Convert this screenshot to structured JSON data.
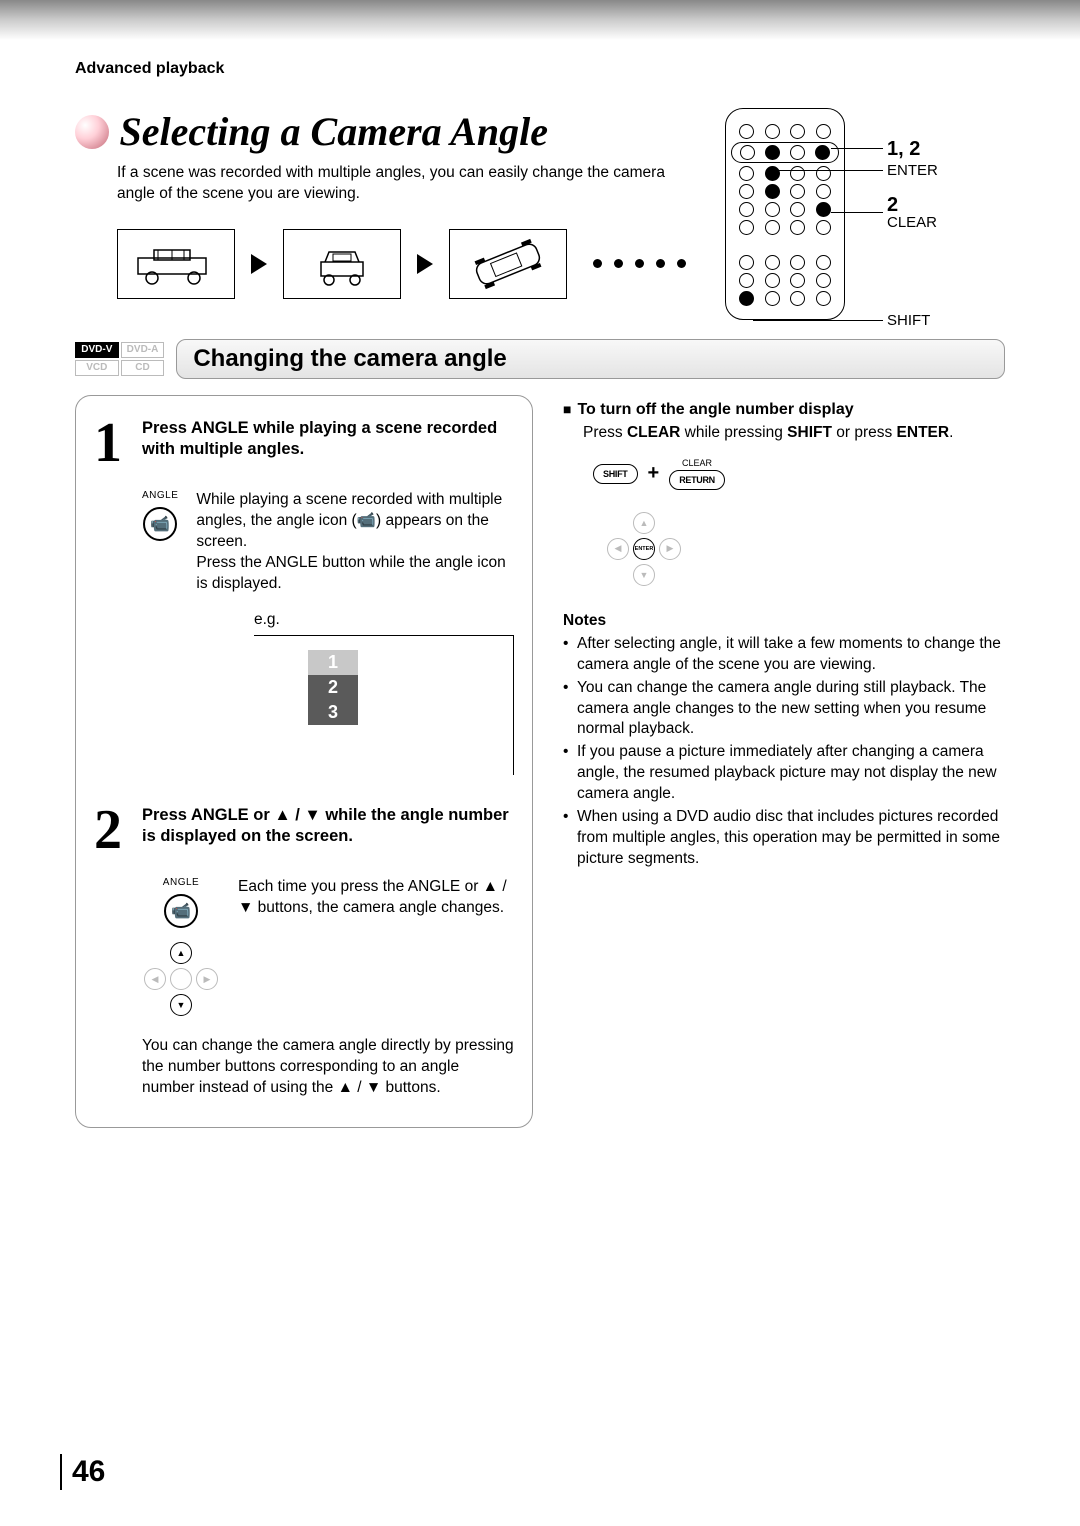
{
  "breadcrumb": "Advanced playback",
  "title": "Selecting a Camera Angle",
  "intro": "If a scene was recorded with multiple angles, you can easily change the camera angle of the scene you are viewing.",
  "remote_labels": {
    "steps12": "1, 2",
    "enter": "ENTER",
    "step2": "2",
    "clear": "CLEAR",
    "shift": "SHIFT"
  },
  "disc_badges": {
    "dvdv": "DVD-V",
    "dvda": "DVD-A",
    "vcd": "VCD",
    "cd": "CD"
  },
  "section_title": "Changing the camera angle",
  "step1": {
    "num": "1",
    "title": "Press ANGLE while playing a scene recorded with multiple angles.",
    "icon_label": "ANGLE",
    "desc": "While playing a scene recorded with multiple angles, the angle icon (📹) appears on the screen.\nPress the ANGLE button while the angle icon is displayed.",
    "eg_label": "e.g.",
    "eg_items": [
      "1",
      "2",
      "3"
    ],
    "eg_colors": [
      "#c8c8c8",
      "#5a5a5a",
      "#5a5a5a"
    ]
  },
  "step2": {
    "num": "2",
    "title": "Press ANGLE or ▲ / ▼ while the angle number is displayed on the screen.",
    "icon_label": "ANGLE",
    "desc": "Each time you press the ANGLE or ▲ / ▼ buttons, the camera angle changes.",
    "note": "You can change the camera angle directly by pressing the number buttons corresponding to an angle number instead of using the ▲ / ▼ buttons."
  },
  "turnoff": {
    "heading": "To turn off the angle number display",
    "text_pre": "Press ",
    "clear": "CLEAR",
    "text_mid": " while pressing ",
    "shift": "SHIFT",
    "text_mid2": " or press ",
    "enter": "ENTER",
    "text_end": ".",
    "btn_clear_label": "CLEAR",
    "btn_shift": "SHIFT",
    "btn_return": "RETURN",
    "plus": "+",
    "dpad_center": "ENTER"
  },
  "notes": {
    "heading": "Notes",
    "items": [
      "After selecting angle, it will take a few moments to change the camera angle of the scene you are viewing.",
      "You can change the camera angle during still playback. The camera angle changes to the new setting when you resume normal playback.",
      "If you pause a picture immediately after changing a camera angle, the resumed playback picture may not display the new camera angle.",
      "When using a DVD audio disc that includes pictures recorded from multiple angles, this operation may be permitted in some picture segments."
    ]
  },
  "page_number": "46",
  "colors": {
    "gradient_top": "#888888",
    "accent_sphere": "#d78a96",
    "border": "#999999"
  }
}
